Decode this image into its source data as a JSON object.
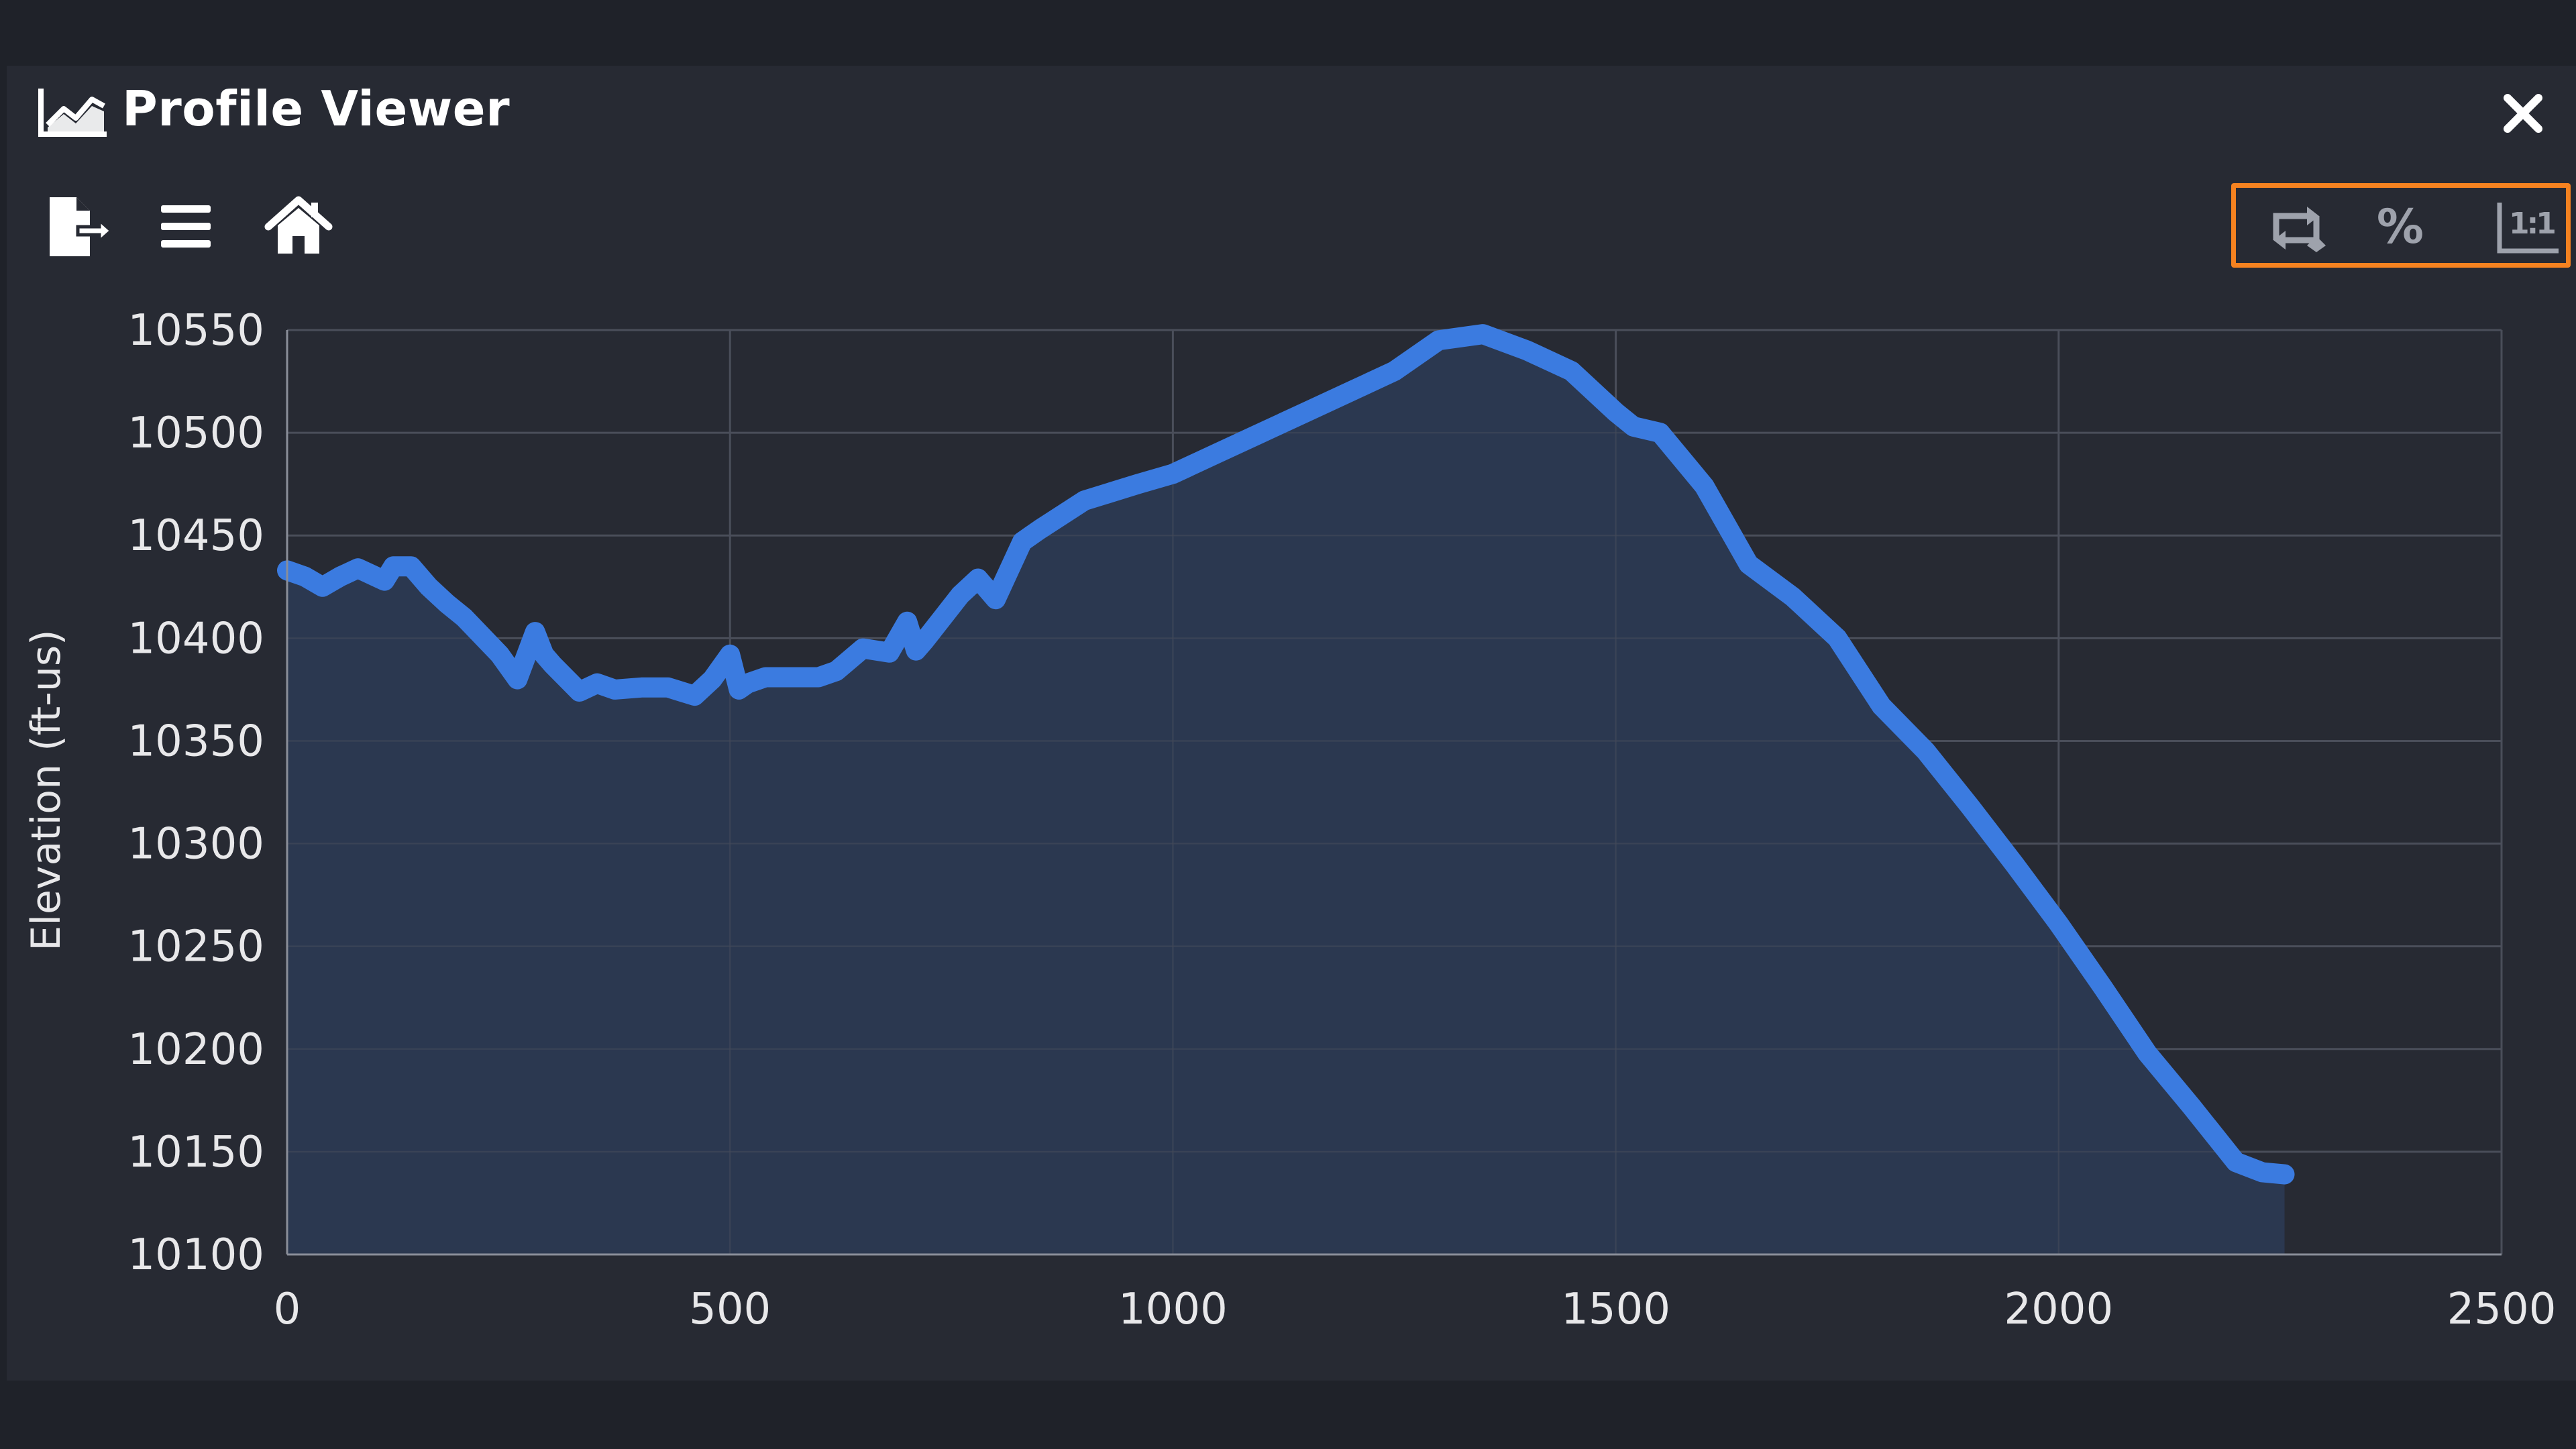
{
  "window": {
    "title": "Profile Viewer",
    "title_icon": "area-chart-icon",
    "close_icon": "close-icon"
  },
  "toolbar": {
    "left_icons": [
      "export-file-icon",
      "menu-icon",
      "home-icon"
    ],
    "right_icons": [
      "swap-direction-icon",
      "percent-icon",
      "aspect-ratio-1-1-icon"
    ],
    "ratio_label": "1:1",
    "percent_label": "%",
    "highlight_color": "#f58220"
  },
  "colors": {
    "background": "#1f2229",
    "panel": "#272a33",
    "line": "#3b7be0",
    "fill": "#2b3a52",
    "grid": "#4a4e5a",
    "text": "#e8e8ea"
  },
  "chart_data": {
    "type": "area",
    "ylabel": "Elevation (ft-us)",
    "xlabel": "",
    "xlim": [
      0,
      2500
    ],
    "ylim": [
      10100,
      10550
    ],
    "x_ticks": [
      "0",
      "500",
      "1000",
      "1500",
      "2000",
      "2500"
    ],
    "y_ticks": [
      "10550",
      "10500",
      "10450",
      "10400",
      "10350",
      "10300",
      "10250",
      "10200",
      "10150",
      "10100"
    ],
    "grid": true,
    "x": [
      0,
      20,
      40,
      60,
      80,
      100,
      110,
      120,
      140,
      160,
      180,
      200,
      240,
      260,
      280,
      290,
      300,
      330,
      350,
      370,
      400,
      430,
      460,
      480,
      500,
      510,
      520,
      540,
      580,
      600,
      620,
      650,
      680,
      700,
      710,
      720,
      760,
      780,
      800,
      830,
      850,
      900,
      960,
      1000,
      1050,
      1100,
      1150,
      1200,
      1250,
      1300,
      1350,
      1400,
      1450,
      1500,
      1520,
      1550,
      1600,
      1650,
      1700,
      1750,
      1800,
      1850,
      1900,
      1950,
      2000,
      2050,
      2100,
      2150,
      2200,
      2230,
      2255
    ],
    "y": [
      10433,
      10430,
      10425,
      10430,
      10434,
      10430,
      10428,
      10435,
      10435,
      10425,
      10417,
      10410,
      10392,
      10380,
      10403,
      10392,
      10387,
      10374,
      10378,
      10375,
      10376,
      10376,
      10372,
      10380,
      10392,
      10375,
      10378,
      10381,
      10381,
      10381,
      10384,
      10395,
      10393,
      10408,
      10394,
      10399,
      10421,
      10429,
      10419,
      10447,
      10453,
      10467,
      10475,
      10480,
      10490,
      10500,
      10510,
      10520,
      10530,
      10545,
      10548,
      10540,
      10530,
      10510,
      10503,
      10500,
      10474,
      10436,
      10420,
      10400,
      10367,
      10345,
      10318,
      10290,
      10261,
      10230,
      10198,
      10172,
      10145,
      10140,
      10139
    ]
  }
}
